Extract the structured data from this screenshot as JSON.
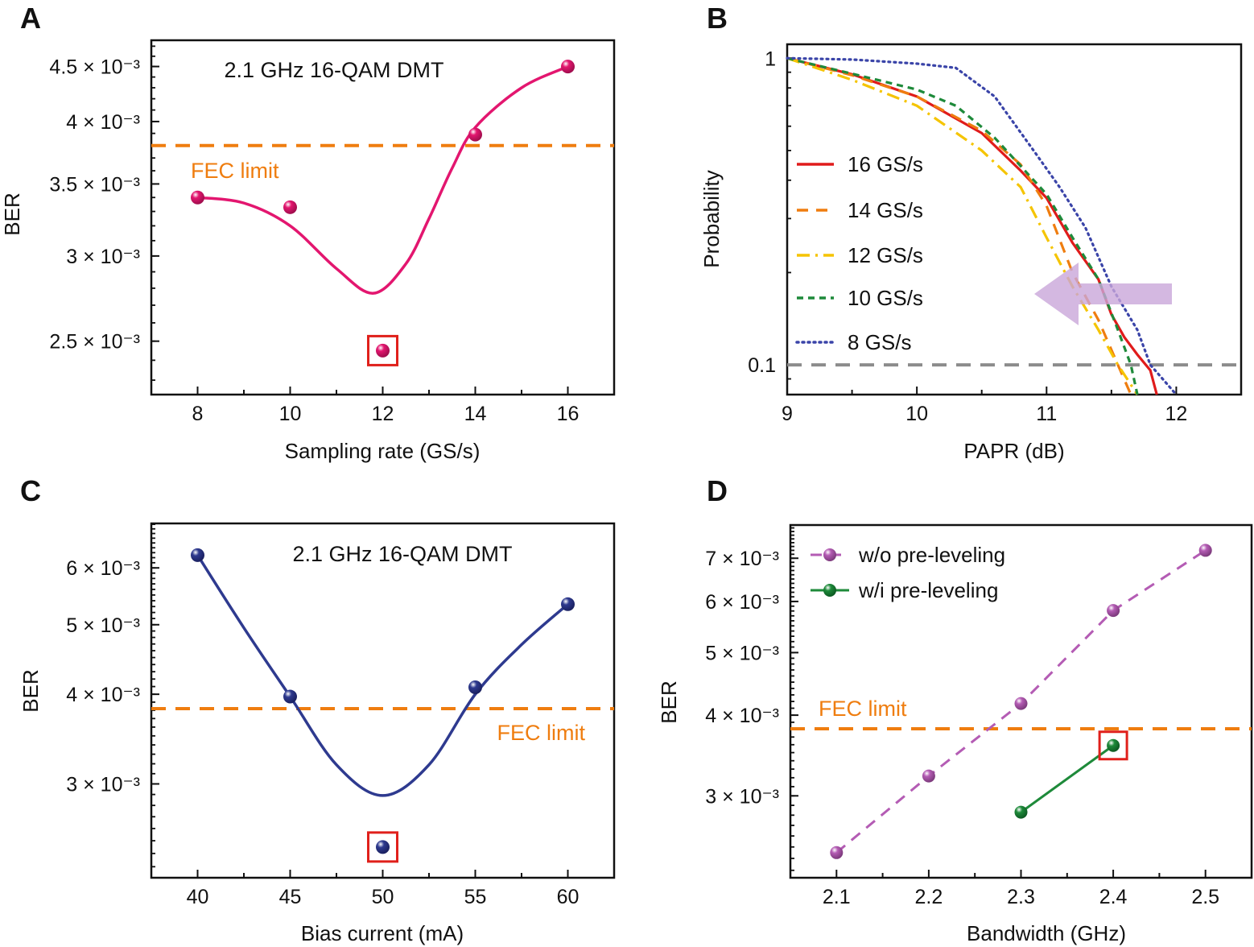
{
  "chart_data": [
    {
      "panel": "A",
      "type": "scatter",
      "annotation": "2.1 GHz 16-QAM DMT",
      "xlabel": "Sampling rate (GS/s)",
      "ylabel": "BER",
      "xlim": [
        7,
        17
      ],
      "ylim": [
        0.00223,
        0.00476
      ],
      "yscale": "log",
      "xticks": [
        8,
        10,
        12,
        14,
        16
      ],
      "xtick_labels": [
        "8",
        "10",
        "12",
        "14",
        "16"
      ],
      "yticks": [
        0.0045,
        0.004,
        0.0035,
        0.003,
        0.0025
      ],
      "ytick_labels": [
        "4.5 × 10⁻³",
        "4 × 10⁻³",
        "3.5 × 10⁻³",
        "3 × 10⁻³",
        "2.5 × 10⁻³"
      ],
      "color": "#e3166f",
      "points": {
        "x": [
          8,
          10,
          12,
          14,
          16
        ],
        "y": [
          0.0034,
          0.00333,
          0.00245,
          0.00389,
          0.0045
        ]
      },
      "highlighted_x": 12,
      "fit_curve": {
        "x": [
          8,
          9,
          10,
          11,
          11.8,
          12.5,
          13,
          13.5,
          14,
          15,
          16
        ],
        "y": [
          0.0034,
          0.00336,
          0.0032,
          0.00292,
          0.00277,
          0.00295,
          0.00325,
          0.00362,
          0.00395,
          0.0043,
          0.0045
        ]
      },
      "fec_limit": {
        "value": 0.0038,
        "label": "FEC limit",
        "color": "#ef7d0f"
      }
    },
    {
      "panel": "B",
      "type": "line",
      "xlabel": "PAPR (dB)",
      "ylabel": "Probability",
      "xlim": [
        9,
        12.5
      ],
      "ylim": [
        0.08,
        1.11
      ],
      "yscale": "log",
      "xticks": [
        9,
        10,
        11,
        12
      ],
      "xtick_labels": [
        "9",
        "10",
        "11",
        "12"
      ],
      "yticks": [
        1,
        0.1
      ],
      "ytick_labels": [
        "1",
        "0.1"
      ],
      "reference_line": {
        "value": 0.1,
        "color": "#8c8c8c"
      },
      "legend_position": "left",
      "series": [
        {
          "name": "16 GS/s",
          "color": "#e01b1b",
          "dash": "solid",
          "x": [
            9,
            9.5,
            10,
            10.5,
            10.8,
            11,
            11.2,
            11.4,
            11.5,
            11.6,
            11.7,
            11.8,
            11.85
          ],
          "y": [
            1,
            0.886,
            0.75,
            0.57,
            0.43,
            0.35,
            0.25,
            0.19,
            0.146,
            0.123,
            0.108,
            0.096,
            0.08
          ]
        },
        {
          "name": "14 GS/s",
          "color": "#ef7d0f",
          "dash": "dash",
          "x": [
            9,
            9.5,
            10,
            10.5,
            10.8,
            11,
            11.2,
            11.4,
            11.55,
            11.65
          ],
          "y": [
            1,
            0.88,
            0.75,
            0.58,
            0.45,
            0.33,
            0.2,
            0.14,
            0.1,
            0.08
          ]
        },
        {
          "name": "12 GS/s",
          "color": "#f5c400",
          "dash": "dashdot",
          "x": [
            9,
            9.5,
            10,
            10.5,
            10.8,
            11,
            11.2,
            11.4,
            11.55,
            11.7
          ],
          "y": [
            1,
            0.85,
            0.7,
            0.5,
            0.38,
            0.26,
            0.18,
            0.13,
            0.1,
            0.08
          ]
        },
        {
          "name": "10 GS/s",
          "color": "#1e8a3a",
          "dash": "shortdash",
          "x": [
            9,
            9.5,
            10,
            10.3,
            10.6,
            11,
            11.2,
            11.4,
            11.55,
            11.65,
            11.7
          ],
          "y": [
            1,
            0.89,
            0.79,
            0.7,
            0.55,
            0.36,
            0.26,
            0.19,
            0.13,
            0.1,
            0.08
          ]
        },
        {
          "name": "8 GS/s",
          "color": "#3a44a8",
          "dash": "dot",
          "x": [
            9,
            9.5,
            10,
            10.3,
            10.6,
            10.9,
            11.1,
            11.3,
            11.5,
            11.7,
            11.8,
            12
          ],
          "y": [
            1,
            0.99,
            0.96,
            0.93,
            0.75,
            0.5,
            0.38,
            0.28,
            0.18,
            0.13,
            0.1,
            0.08
          ]
        }
      ],
      "arrow": {
        "direction": "left",
        "color": "#c9a6d9"
      }
    },
    {
      "panel": "C",
      "type": "scatter",
      "annotation": "2.1 GHz 16-QAM DMT",
      "xlabel": "Bias current (mA)",
      "ylabel": "BER",
      "xlim": [
        37.5,
        62.5
      ],
      "ylim": [
        0.00222,
        0.00692
      ],
      "yscale": "log",
      "xticks": [
        40,
        45,
        50,
        55,
        60
      ],
      "xtick_labels": [
        "40",
        "45",
        "50",
        "55",
        "60"
      ],
      "yticks": [
        0.006,
        0.005,
        0.004,
        0.003
      ],
      "ytick_labels": [
        "6 × 10⁻³",
        "5 × 10⁻³",
        "4 × 10⁻³",
        "3 × 10⁻³"
      ],
      "color": "#2e3a8f",
      "points": {
        "x": [
          40,
          45,
          50,
          55,
          60
        ],
        "y": [
          0.00625,
          0.00397,
          0.00245,
          0.00409,
          0.00534
        ]
      },
      "highlighted_x": 50,
      "fit_curve": {
        "x": [
          40,
          42.5,
          45,
          47.5,
          50,
          52.5,
          55,
          57.5,
          60
        ],
        "y": [
          0.00625,
          0.00495,
          0.00397,
          0.00319,
          0.00289,
          0.00319,
          0.004,
          0.00469,
          0.00534
        ]
      },
      "fec_limit": {
        "value": 0.00382,
        "label": "FEC limit",
        "color": "#ef7d0f"
      }
    },
    {
      "panel": "D",
      "type": "line",
      "xlabel": "Bandwidth (GHz)",
      "ylabel": "BER",
      "xlim": [
        2.05,
        2.55
      ],
      "ylim": [
        0.00224,
        0.00788
      ],
      "yscale": "log",
      "xticks": [
        2.1,
        2.2,
        2.3,
        2.4,
        2.5
      ],
      "xtick_labels": [
        "2.1",
        "2.2",
        "2.3",
        "2.4",
        "2.5"
      ],
      "yticks": [
        0.007,
        0.006,
        0.005,
        0.004,
        0.003
      ],
      "ytick_labels": [
        "7 × 10⁻³",
        "6 × 10⁻³",
        "5 × 10⁻³",
        "4 × 10⁻³",
        "3 × 10⁻³"
      ],
      "legend_position": "top-left",
      "series": [
        {
          "name": "w/o pre-leveling",
          "color": "#b45cb4",
          "dash": "dash",
          "x": [
            2.1,
            2.2,
            2.3,
            2.4,
            2.5
          ],
          "y": [
            0.00245,
            0.00322,
            0.00417,
            0.00581,
            0.0072
          ]
        },
        {
          "name": "w/i pre-leveling",
          "color": "#1e8a3a",
          "dash": "solid",
          "x": [
            2.3,
            2.4
          ],
          "y": [
            0.00283,
            0.00359
          ]
        }
      ],
      "highlighted": {
        "series": "w/i pre-leveling",
        "x": 2.4
      },
      "fec_limit": {
        "value": 0.00381,
        "label": "FEC limit",
        "color": "#ef7d0f"
      }
    }
  ]
}
